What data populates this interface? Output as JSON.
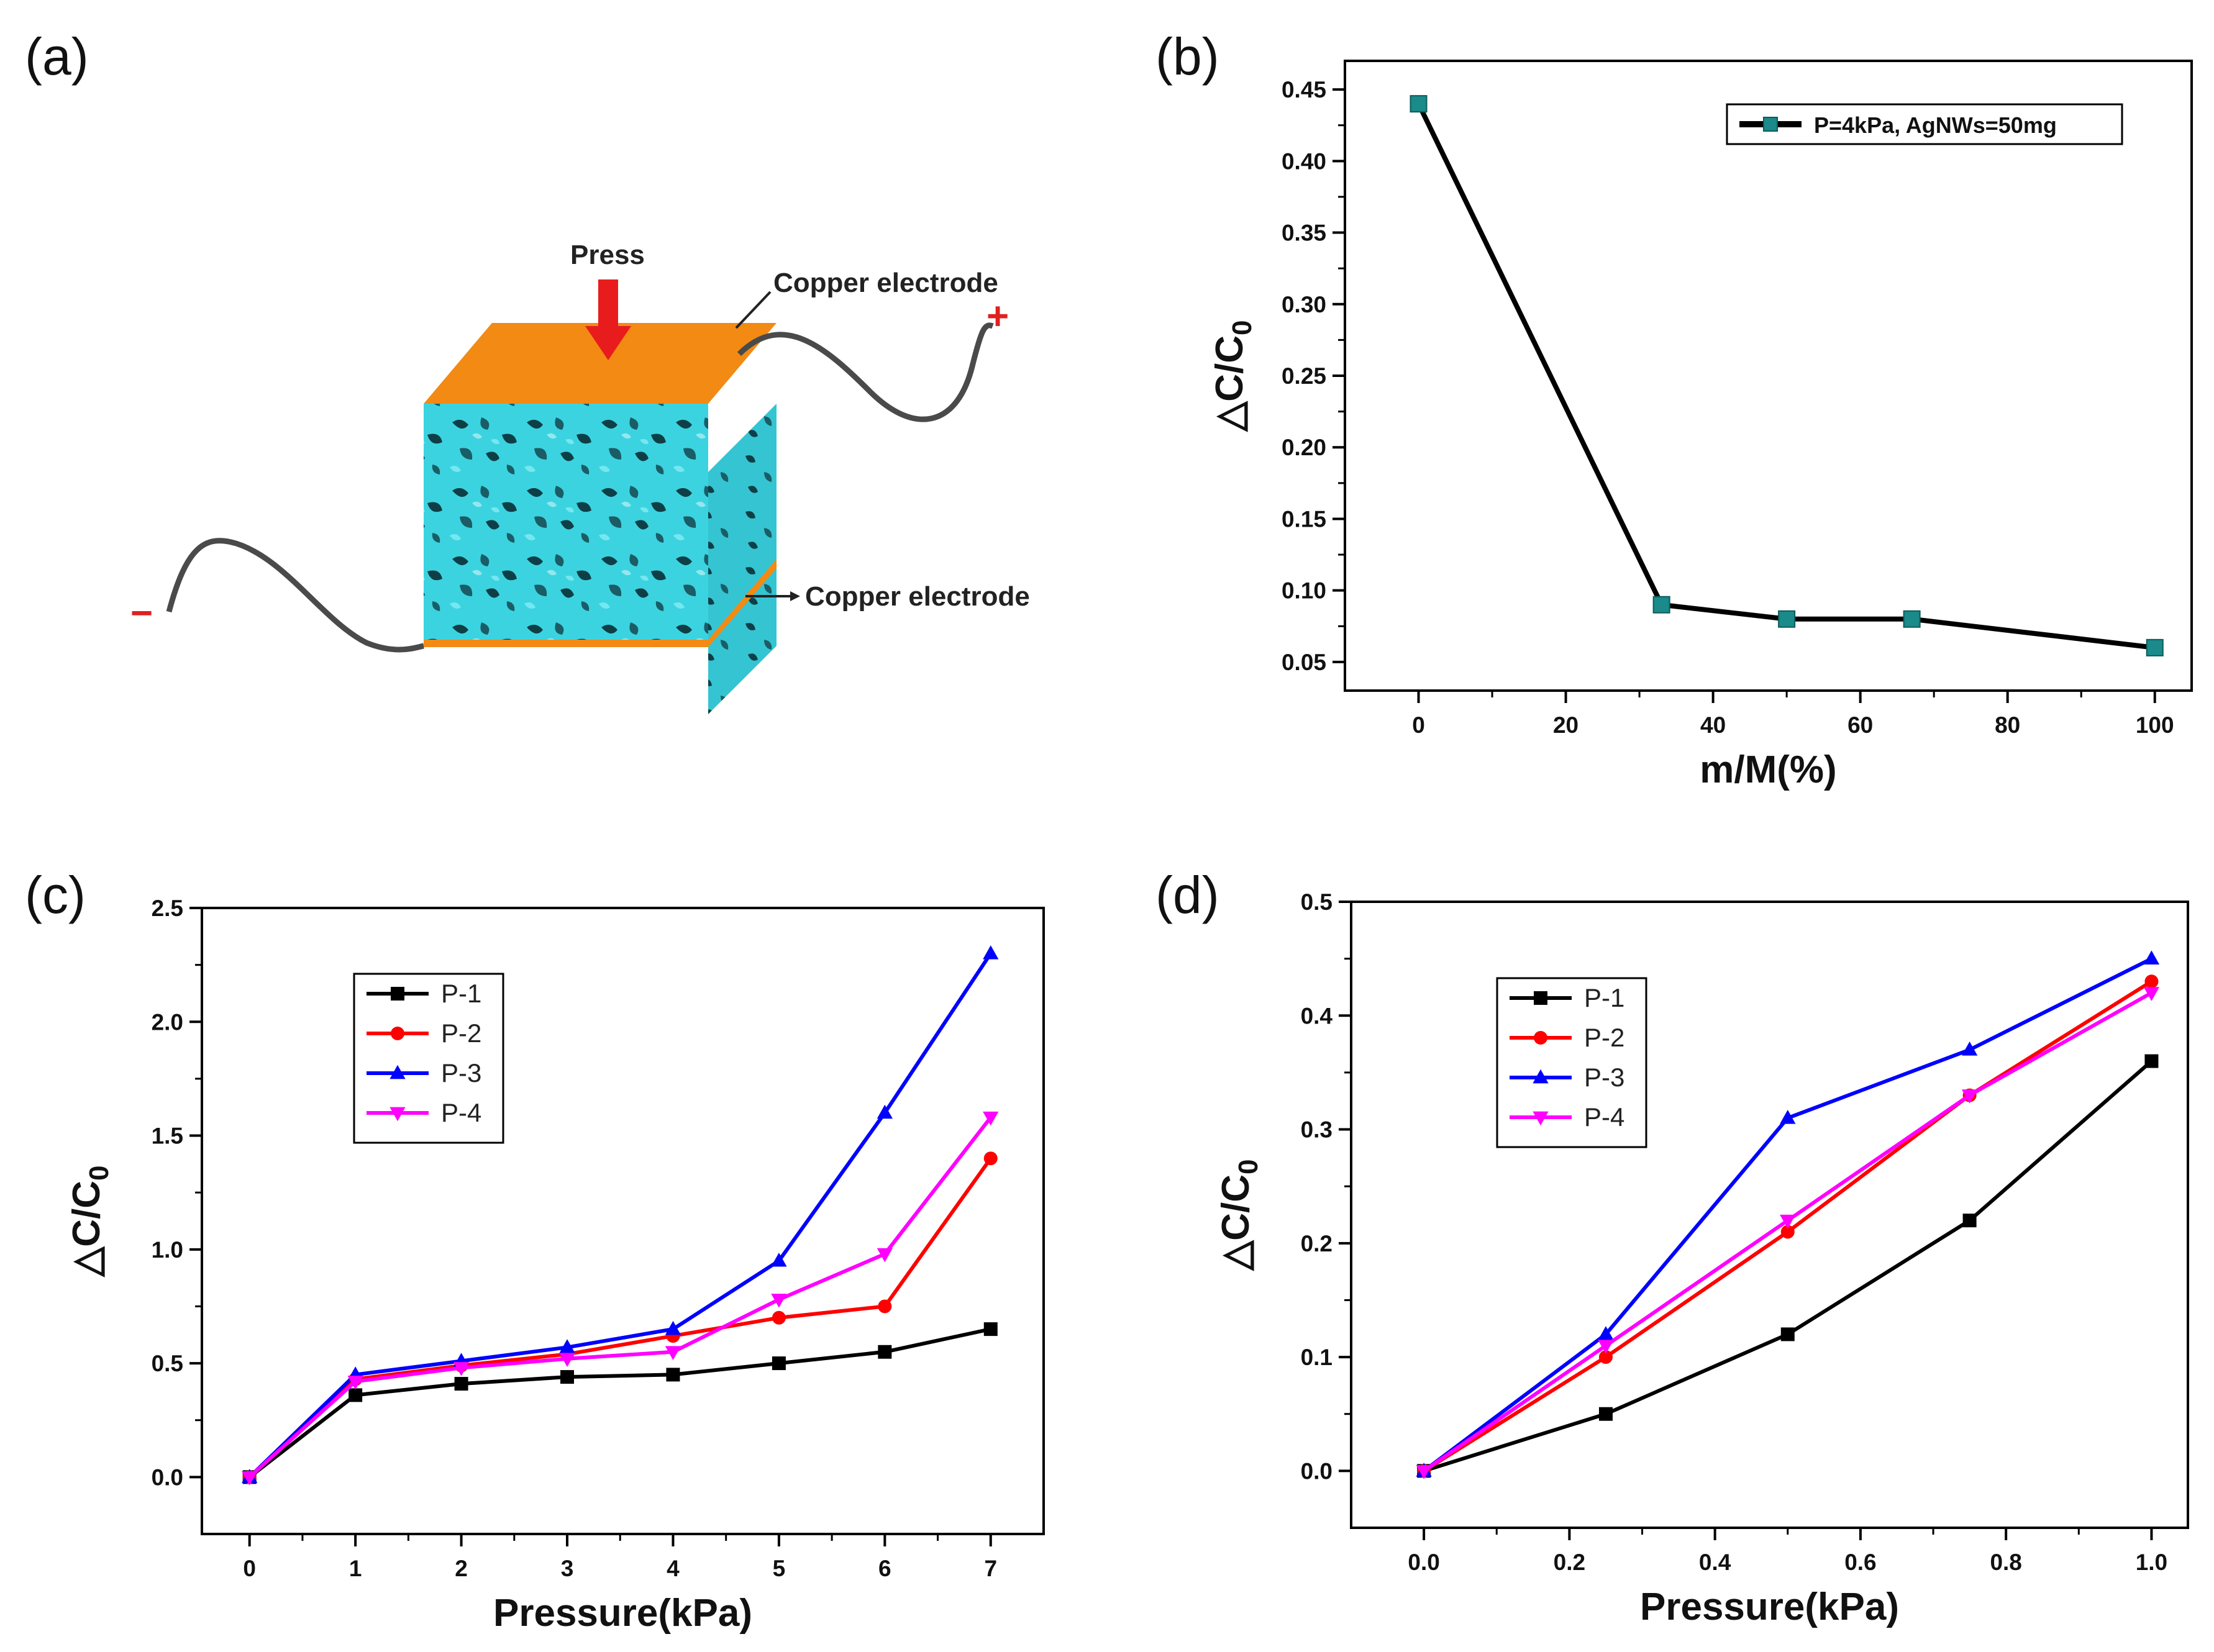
{
  "panels": {
    "a": "(a)",
    "b": "(b)",
    "c": "(c)",
    "d": "(d)"
  },
  "diagram": {
    "press_label": "Press",
    "top_electrode_label": "Copper electrode",
    "bottom_electrode_label": "Copper electrode",
    "plus_sign": "+",
    "minus_sign": "−",
    "colors": {
      "electrode": "#f28a14",
      "foam": "#3cd3e0",
      "wire": "#4a4a4a",
      "arrow": "#e81c1c"
    }
  },
  "chart_data": [
    {
      "id": "b",
      "type": "line",
      "xlabel": "m/M(%)",
      "ylabel": "△C/C",
      "ylabel_sub": "0",
      "xlim": [
        -10,
        105
      ],
      "ylim": [
        0.03,
        0.47
      ],
      "xticks": [
        0,
        20,
        40,
        60,
        80,
        100
      ],
      "yticks": [
        0.05,
        0.1,
        0.15,
        0.2,
        0.25,
        0.3,
        0.35,
        0.4,
        0.45
      ],
      "ytick_decimals": 2,
      "xtick_decimals": 0,
      "legend_position": "top-right",
      "series": [
        {
          "name": "P=4kPa, AgNWs=50mg",
          "color": "#000000",
          "marker_color": "#1a8a8a",
          "marker": "square",
          "x": [
            0,
            33,
            50,
            67,
            100
          ],
          "y": [
            0.44,
            0.09,
            0.08,
            0.08,
            0.06
          ]
        }
      ]
    },
    {
      "id": "c",
      "type": "line",
      "xlabel": "Pressure(kPa)",
      "ylabel": "△C/C",
      "ylabel_sub": "0",
      "xlim": [
        -0.45,
        7.5
      ],
      "ylim": [
        -0.25,
        2.5
      ],
      "xticks": [
        0,
        1,
        2,
        3,
        4,
        5,
        6,
        7
      ],
      "yticks": [
        0.0,
        0.5,
        1.0,
        1.5,
        2.0,
        2.5
      ],
      "ytick_decimals": 1,
      "xtick_decimals": 0,
      "legend_position": "top-left",
      "series": [
        {
          "name": "P-1",
          "color": "#000000",
          "marker": "square",
          "x": [
            0,
            1,
            2,
            3,
            4,
            5,
            6,
            7
          ],
          "y": [
            0,
            0.36,
            0.41,
            0.44,
            0.45,
            0.5,
            0.55,
            0.65
          ]
        },
        {
          "name": "P-2",
          "color": "#ff0000",
          "marker": "circle",
          "x": [
            0,
            1,
            2,
            3,
            4,
            5,
            6,
            7
          ],
          "y": [
            0,
            0.43,
            0.49,
            0.54,
            0.62,
            0.7,
            0.75,
            1.4
          ]
        },
        {
          "name": "P-3",
          "color": "#0000ff",
          "marker": "triangle-up",
          "x": [
            0,
            1,
            2,
            3,
            4,
            5,
            6,
            7
          ],
          "y": [
            0,
            0.45,
            0.51,
            0.57,
            0.65,
            0.95,
            1.6,
            2.3
          ]
        },
        {
          "name": "P-4",
          "color": "#ff00ff",
          "marker": "triangle-down",
          "x": [
            0,
            1,
            2,
            3,
            4,
            5,
            6,
            7
          ],
          "y": [
            0,
            0.42,
            0.48,
            0.52,
            0.55,
            0.78,
            0.98,
            1.58
          ]
        }
      ]
    },
    {
      "id": "d",
      "type": "line",
      "xlabel": "Pressure(kPa)",
      "ylabel": "△C/C",
      "ylabel_sub": "0",
      "xlim": [
        -0.1,
        1.05
      ],
      "ylim": [
        -0.05,
        0.5
      ],
      "xticks": [
        0.0,
        0.2,
        0.4,
        0.6,
        0.8,
        1.0
      ],
      "yticks": [
        0.0,
        0.1,
        0.2,
        0.3,
        0.4,
        0.5
      ],
      "ytick_decimals": 1,
      "xtick_decimals": 1,
      "legend_position": "top-left",
      "series": [
        {
          "name": "P-1",
          "color": "#000000",
          "marker": "square",
          "x": [
            0,
            0.25,
            0.5,
            0.75,
            1.0
          ],
          "y": [
            0,
            0.05,
            0.12,
            0.22,
            0.36
          ]
        },
        {
          "name": "P-2",
          "color": "#ff0000",
          "marker": "circle",
          "x": [
            0,
            0.25,
            0.5,
            0.75,
            1.0
          ],
          "y": [
            0,
            0.1,
            0.21,
            0.33,
            0.43
          ]
        },
        {
          "name": "P-3",
          "color": "#0000ff",
          "marker": "triangle-up",
          "x": [
            0,
            0.25,
            0.5,
            0.75,
            1.0
          ],
          "y": [
            0,
            0.12,
            0.31,
            0.37,
            0.45
          ]
        },
        {
          "name": "P-4",
          "color": "#ff00ff",
          "marker": "triangle-down",
          "x": [
            0,
            0.25,
            0.5,
            0.75,
            1.0
          ],
          "y": [
            0,
            0.11,
            0.22,
            0.33,
            0.42
          ]
        }
      ]
    }
  ]
}
